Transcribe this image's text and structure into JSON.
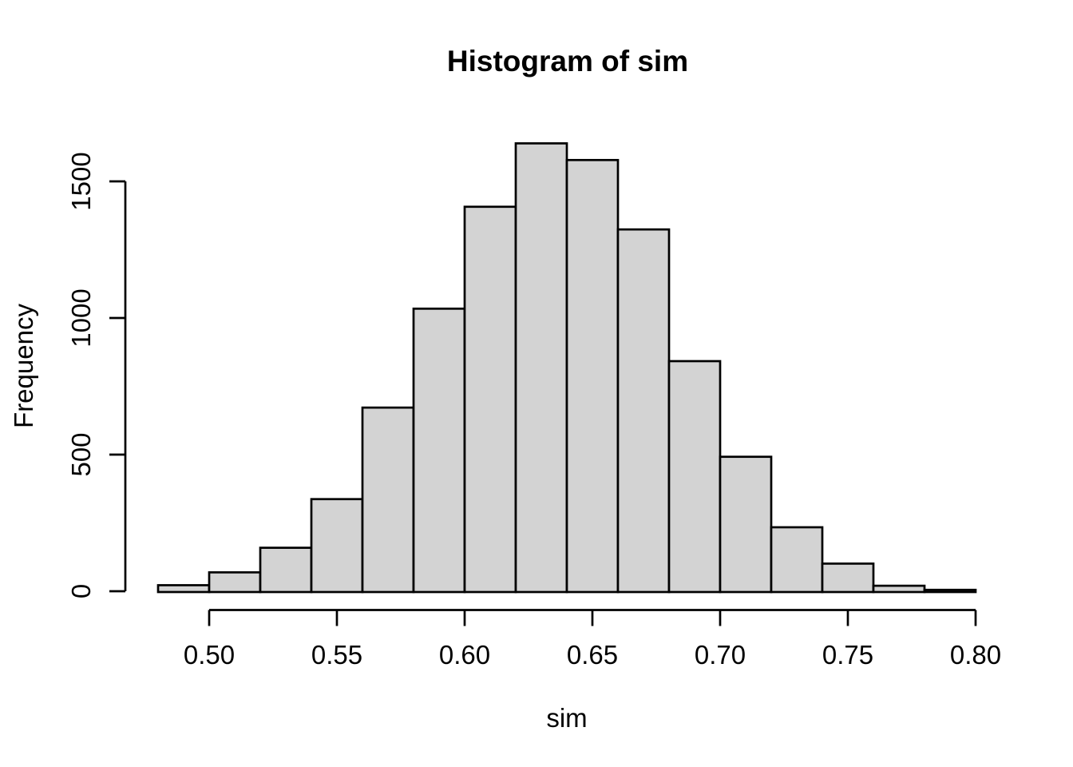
{
  "page": {
    "background": "#ffffff"
  },
  "chart_data": {
    "type": "bar",
    "subtype": "histogram",
    "title": "Histogram of sim",
    "xlabel": "sim",
    "ylabel": "Frequency",
    "bin_start": 0.48,
    "bin_width": 0.02,
    "bin_edges": [
      0.48,
      0.5,
      0.52,
      0.54,
      0.56,
      0.58,
      0.6,
      0.62,
      0.64,
      0.66,
      0.68,
      0.7,
      0.72,
      0.74,
      0.76,
      0.78,
      0.8
    ],
    "counts": [
      25,
      72,
      162,
      340,
      675,
      1037,
      1410,
      1642,
      1581,
      1327,
      845,
      495,
      237,
      104,
      23,
      8
    ],
    "x_tick_values": [
      0.5,
      0.55,
      0.6,
      0.65,
      0.7,
      0.75,
      0.8
    ],
    "x_tick_labels": [
      "0.50",
      "0.55",
      "0.60",
      "0.65",
      "0.70",
      "0.75",
      "0.80"
    ],
    "y_tick_values": [
      0,
      500,
      1000,
      1500
    ],
    "y_tick_labels": [
      "0",
      "500",
      "1000",
      "1500"
    ],
    "xlim": [
      0.48,
      0.8
    ],
    "ylim": [
      0,
      1500
    ],
    "grid": false,
    "legend": false,
    "colors": {
      "bar_fill": "#d3d3d3",
      "bar_border": "#000000",
      "axis": "#000000",
      "text": "#000000",
      "background": "#ffffff"
    }
  }
}
